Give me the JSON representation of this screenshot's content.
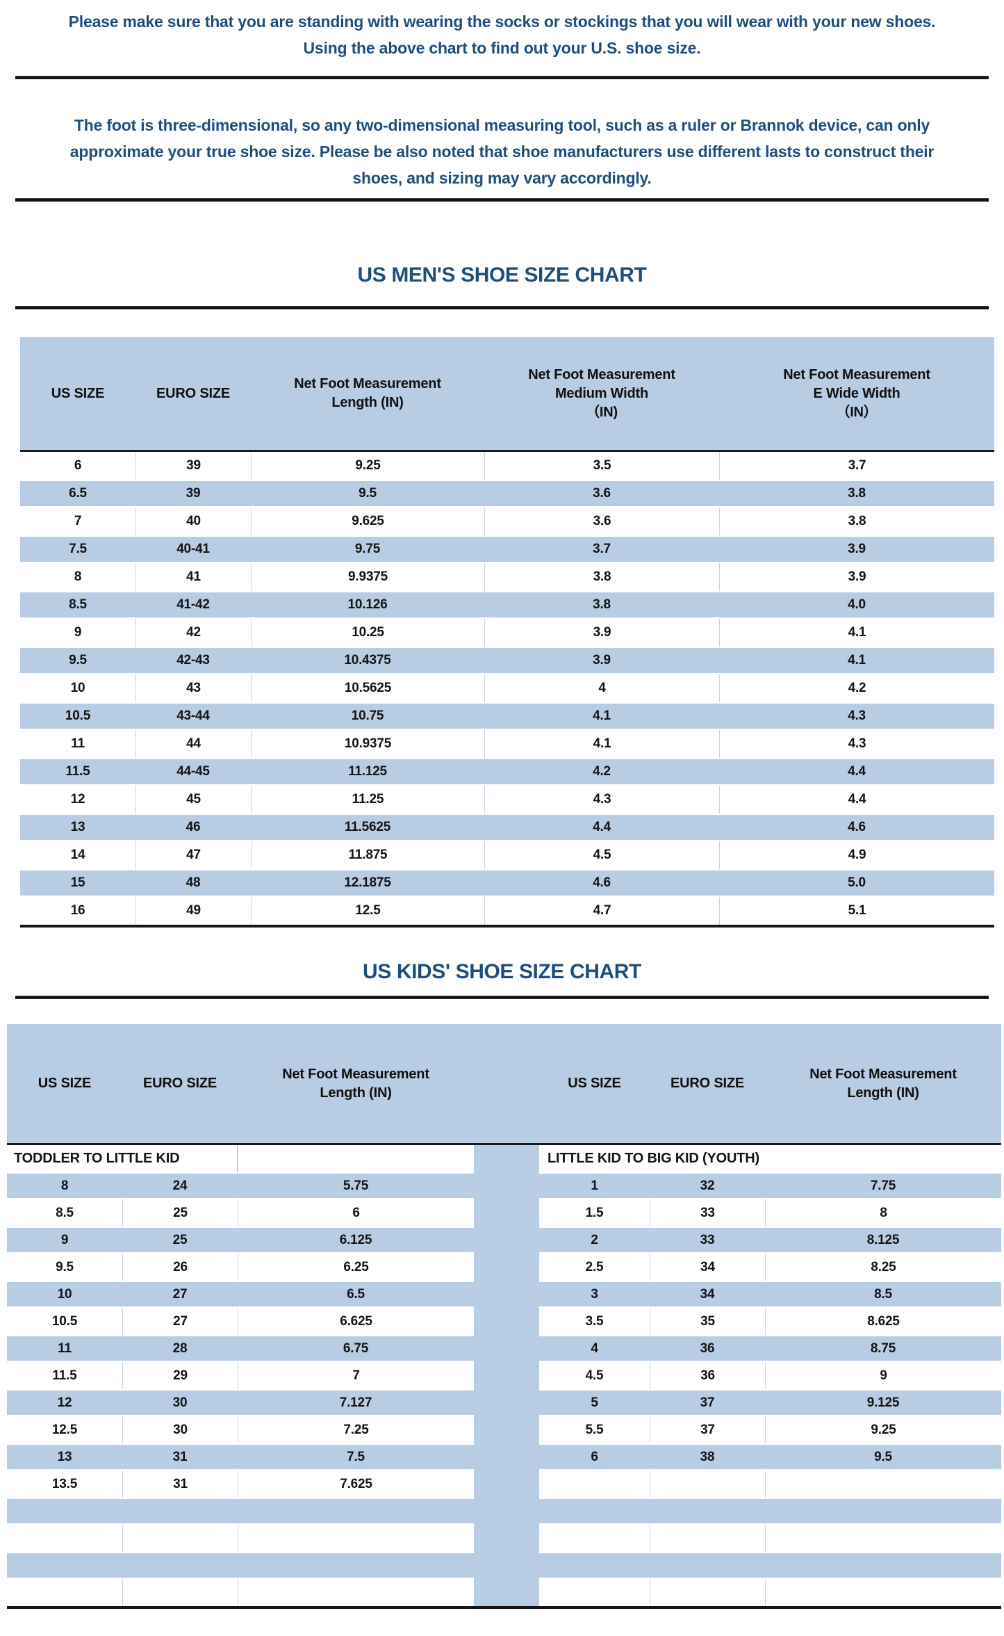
{
  "colors": {
    "accent_blue": "#1f4e7d",
    "row_blue": "#b8cce4",
    "line_black": "#161616"
  },
  "intro": {
    "p1_lines": [
      "Please make sure that you are standing with wearing the socks or stockings that you will wear with your new shoes.",
      "Using the above chart to find out your U.S. shoe size."
    ],
    "p2_lines": [
      "The foot is three-dimensional, so any two-dimensional measuring tool, such as a ruler or Brannok device, can only",
      "approximate your true shoe size. Please be also noted that shoe manufacturers use different lasts to construct their",
      "shoes, and sizing may vary accordingly."
    ]
  },
  "mens_chart": {
    "title": "US MEN'S SHOE SIZE CHART",
    "columns": [
      {
        "lines": [
          "US SIZE"
        ]
      },
      {
        "lines": [
          "EURO SIZE"
        ]
      },
      {
        "lines": [
          "Net Foot Measurement",
          "Length (IN)"
        ]
      },
      {
        "lines": [
          "Net Foot Measurement",
          "Medium Width",
          "（IN)"
        ]
      },
      {
        "lines": [
          "Net Foot Measurement",
          "E Wide Width",
          "（IN）"
        ]
      }
    ],
    "rows": [
      [
        "6",
        "39",
        "9.25",
        "3.5",
        "3.7"
      ],
      [
        "6.5",
        "39",
        "9.5",
        "3.6",
        "3.8"
      ],
      [
        "7",
        "40",
        "9.625",
        "3.6",
        "3.8"
      ],
      [
        "7.5",
        "40-41",
        "9.75",
        "3.7",
        "3.9"
      ],
      [
        "8",
        "41",
        "9.9375",
        "3.8",
        "3.9"
      ],
      [
        "8.5",
        "41-42",
        "10.126",
        "3.8",
        "4.0"
      ],
      [
        "9",
        "42",
        "10.25",
        "3.9",
        "4.1"
      ],
      [
        "9.5",
        "42-43",
        "10.4375",
        "3.9",
        "4.1"
      ],
      [
        "10",
        "43",
        "10.5625",
        "4",
        "4.2"
      ],
      [
        "10.5",
        "43-44",
        "10.75",
        "4.1",
        "4.3"
      ],
      [
        "11",
        "44",
        "10.9375",
        "4.1",
        "4.3"
      ],
      [
        "11.5",
        "44-45",
        "11.125",
        "4.2",
        "4.4"
      ],
      [
        "12",
        "45",
        "11.25",
        "4.3",
        "4.4"
      ],
      [
        "13",
        "46",
        "11.5625",
        "4.4",
        "4.6"
      ],
      [
        "14",
        "47",
        "11.875",
        "4.5",
        "4.9"
      ],
      [
        "15",
        "48",
        "12.1875",
        "4.6",
        "5.0"
      ],
      [
        "16",
        "49",
        "12.5",
        "4.7",
        "5.1"
      ]
    ]
  },
  "kids_chart": {
    "title": "US KIDS' SHOE SIZE CHART",
    "columns_left": [
      {
        "lines": [
          "US SIZE"
        ]
      },
      {
        "lines": [
          "EURO SIZE"
        ]
      },
      {
        "lines": [
          "Net Foot Measurement",
          "Length (IN)"
        ]
      }
    ],
    "columns_right": [
      {
        "lines": [
          "US SIZE"
        ]
      },
      {
        "lines": [
          "EURO SIZE"
        ]
      },
      {
        "lines": [
          "Net Foot Measurement",
          "Length (IN)"
        ]
      }
    ],
    "left_group_label": "TODDLER TO LITTLE KID",
    "right_group_label": "LITTLE KID TO BIG KID (YOUTH)",
    "left_rows": [
      [
        "8",
        "24",
        "5.75"
      ],
      [
        "8.5",
        "25",
        "6"
      ],
      [
        "9",
        "25",
        "6.125"
      ],
      [
        "9.5",
        "26",
        "6.25"
      ],
      [
        "10",
        "27",
        "6.5"
      ],
      [
        "10.5",
        "27",
        "6.625"
      ],
      [
        "11",
        "28",
        "6.75"
      ],
      [
        "11.5",
        "29",
        "7"
      ],
      [
        "12",
        "30",
        "7.127"
      ],
      [
        "12.5",
        "30",
        "7.25"
      ],
      [
        "13",
        "31",
        "7.5"
      ],
      [
        "13.5",
        "31",
        "7.625"
      ],
      [
        "",
        "",
        ""
      ],
      [
        "",
        "",
        ""
      ],
      [
        "",
        "",
        ""
      ],
      [
        "",
        "",
        ""
      ]
    ],
    "right_rows": [
      [
        "1",
        "32",
        "7.75"
      ],
      [
        "1.5",
        "33",
        "8"
      ],
      [
        "2",
        "33",
        "8.125"
      ],
      [
        "2.5",
        "34",
        "8.25"
      ],
      [
        "3",
        "34",
        "8.5"
      ],
      [
        "3.5",
        "35",
        "8.625"
      ],
      [
        "4",
        "36",
        "8.75"
      ],
      [
        "4.5",
        "36",
        "9"
      ],
      [
        "5",
        "37",
        "9.125"
      ],
      [
        "5.5",
        "37",
        "9.25"
      ],
      [
        "6",
        "38",
        "9.5"
      ],
      [
        "",
        "",
        ""
      ],
      [
        "",
        "",
        ""
      ],
      [
        "",
        "",
        ""
      ],
      [
        "",
        "",
        ""
      ],
      [
        "",
        "",
        ""
      ]
    ]
  }
}
